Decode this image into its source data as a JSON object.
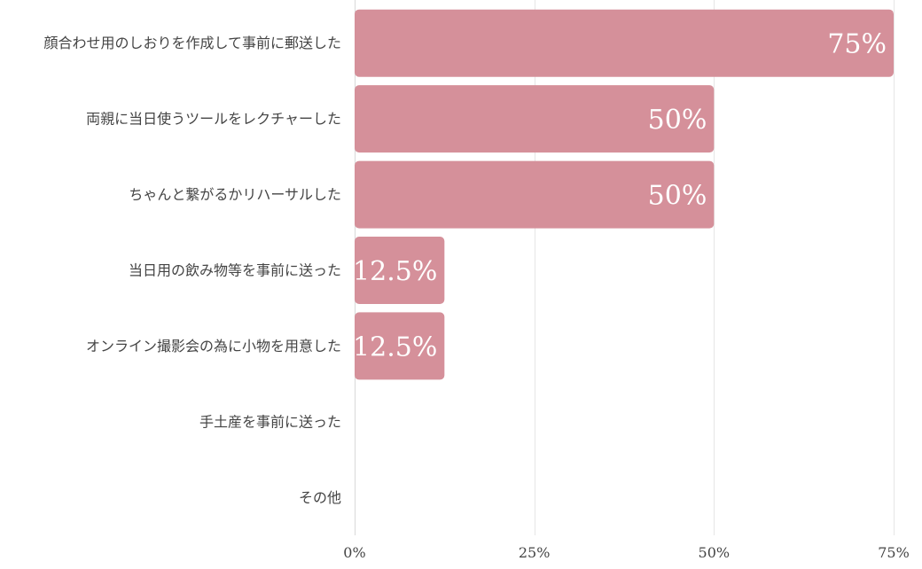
{
  "chart_data": {
    "type": "bar",
    "orientation": "horizontal",
    "categories": [
      "顔合わせ用のしおりを作成して事前に郵送した",
      "両親に当日使うツールをレクチャーした",
      "ちゃんと繋がるかリハーサルした",
      "当日用の飲み物等を事前に送った",
      "オンライン撮影会の為に小物を用意した",
      "手土産を事前に送った",
      "その他"
    ],
    "values": [
      75,
      50,
      50,
      12.5,
      12.5,
      0,
      0
    ],
    "data_labels": [
      "75%",
      "50%",
      "50%",
      "12.5%",
      "12.5%",
      "",
      ""
    ],
    "xlim": [
      0,
      75
    ],
    "x_ticks": [
      0,
      25,
      50,
      75
    ],
    "x_tick_labels": [
      "0%",
      "25%",
      "50%",
      "75%"
    ],
    "grid": "vertical",
    "legend": "none",
    "bar_color": "#d5909a"
  }
}
